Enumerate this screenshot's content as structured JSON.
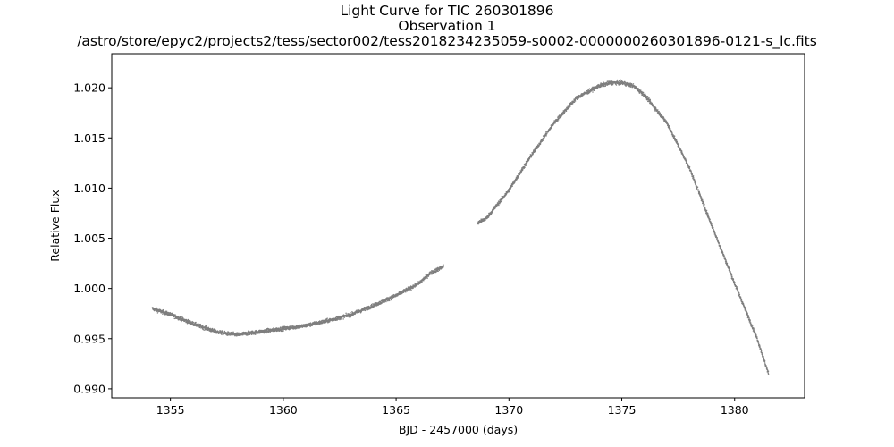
{
  "chart_data": {
    "type": "scatter",
    "title_lines": [
      "Light Curve for TIC 260301896",
      "Observation 1",
      "/astro/store/epyc2/projects2/tess/sector002/tess2018234235059-s0002-0000000260301896-0121-s_lc.fits"
    ],
    "xlabel": "BJD - 2457000 (days)",
    "ylabel": "Relative Flux",
    "xlim": [
      1352.4,
      1383.1
    ],
    "ylim": [
      0.9891,
      1.0234
    ],
    "xticks": [
      1355,
      1360,
      1365,
      1370,
      1375,
      1380
    ],
    "xtick_labels": [
      "1355",
      "1360",
      "1365",
      "1370",
      "1375",
      "1380"
    ],
    "yticks": [
      0.99,
      0.995,
      1.0,
      1.005,
      1.01,
      1.015,
      1.02
    ],
    "ytick_labels": [
      "0.990",
      "0.995",
      "1.000",
      "1.005",
      "1.010",
      "1.015",
      "1.020"
    ],
    "grid": false,
    "legend": "none",
    "marker_color": "#7f7f7f",
    "series": [
      {
        "segments": [
          {
            "x": [
              1354.2,
              1355.0,
              1356.0,
              1357.0,
              1357.5,
              1358.0,
              1359.0,
              1360.0,
              1361.0,
              1362.0,
              1363.0,
              1364.0,
              1365.0,
              1366.0,
              1366.5,
              1367.1
            ],
            "y": [
              0.998,
              0.9974,
              0.9965,
              0.9957,
              0.9955,
              0.9954,
              0.9957,
              0.996,
              0.9963,
              0.9968,
              0.9974,
              0.9983,
              0.9993,
              1.0005,
              1.0015,
              1.0022
            ]
          },
          {
            "x": [
              1368.6,
              1369.0,
              1370.0,
              1371.0,
              1372.0,
              1373.0,
              1374.0,
              1374.5,
              1375.0,
              1375.5,
              1376.0,
              1377.0,
              1378.0,
              1379.0,
              1380.0,
              1381.0,
              1381.5
            ],
            "y": [
              1.0065,
              1.007,
              1.0098,
              1.0133,
              1.0165,
              1.019,
              1.0202,
              1.0205,
              1.0205,
              1.0202,
              1.0193,
              1.0165,
              1.012,
              1.0062,
              1.0005,
              0.995,
              0.9915
            ]
          }
        ]
      }
    ]
  }
}
